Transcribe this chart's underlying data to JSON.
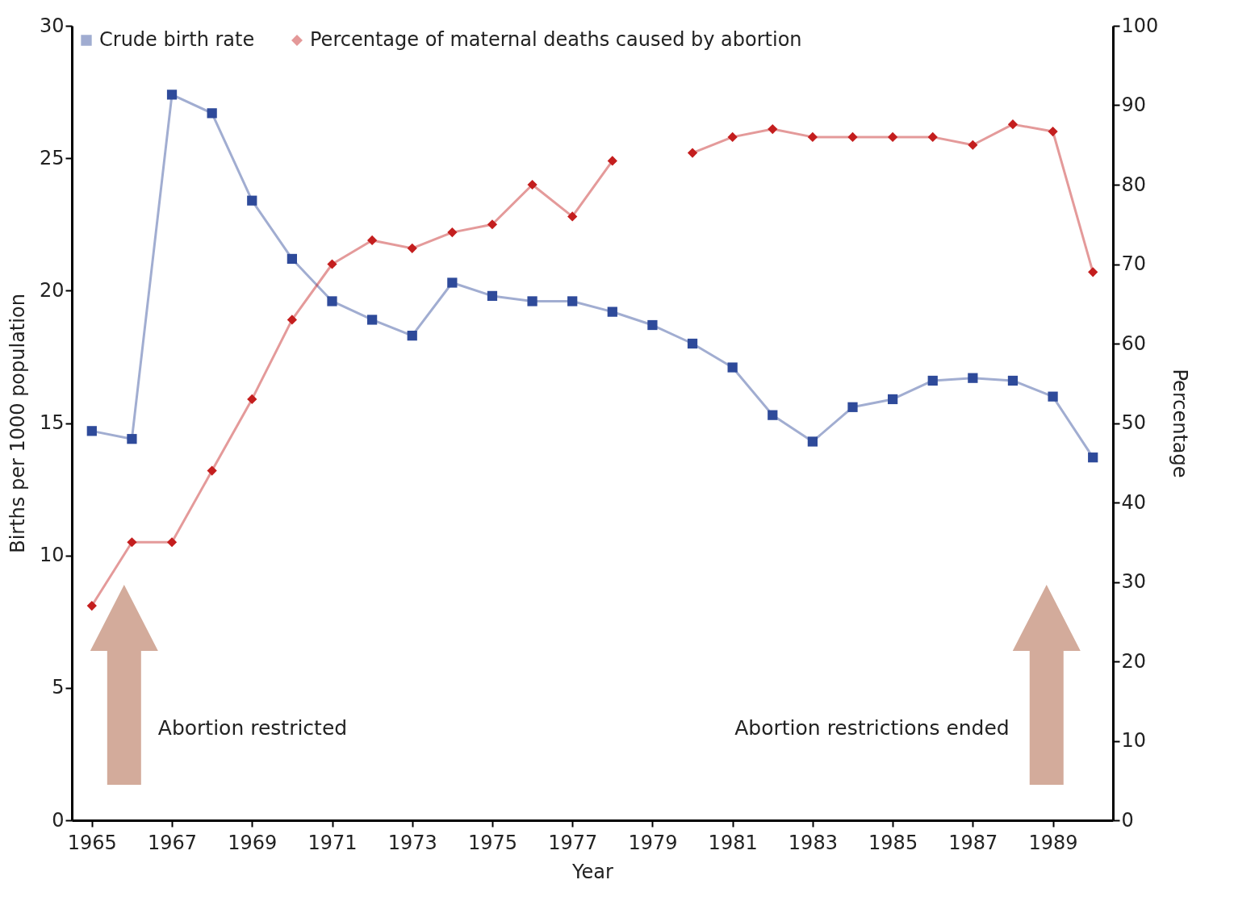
{
  "chart_data": {
    "type": "line",
    "xlabel": "Year",
    "ylabel": "Births per 1000 population",
    "y2label": "Percentage",
    "x": [
      1965,
      1966,
      1967,
      1968,
      1969,
      1970,
      1971,
      1972,
      1973,
      1974,
      1975,
      1976,
      1977,
      1978,
      1979,
      1980,
      1981,
      1982,
      1983,
      1984,
      1985,
      1986,
      1987,
      1988,
      1989,
      1990
    ],
    "series": [
      {
        "name": "Crude birth rate",
        "color": "#2e4a9a",
        "marker": "square",
        "values": [
          14.7,
          14.4,
          27.4,
          26.7,
          23.4,
          21.2,
          19.6,
          18.9,
          18.3,
          20.3,
          19.8,
          19.6,
          19.6,
          19.2,
          18.7,
          18.0,
          17.1,
          15.3,
          14.3,
          15.6,
          15.9,
          16.6,
          16.7,
          16.6,
          16.0,
          13.7
        ]
      },
      {
        "name": "Percentage of maternal deaths caused by abortion",
        "color": "#c41e1e",
        "marker": "diamond",
        "axis": "y2",
        "values": [
          27,
          35,
          35,
          44,
          53,
          63,
          70,
          73,
          72,
          74,
          75,
          80,
          76,
          83,
          null,
          84,
          86,
          87,
          86,
          86,
          86,
          86,
          85,
          87.6,
          86.7,
          69
        ]
      }
    ],
    "xlim": [
      1964.5,
      1990.5
    ],
    "xticks": [
      1965,
      1967,
      1969,
      1971,
      1973,
      1975,
      1977,
      1979,
      1981,
      1983,
      1985,
      1987,
      1989
    ],
    "ylim": [
      0,
      30
    ],
    "yticks": [
      0,
      5,
      10,
      15,
      20,
      25,
      30
    ],
    "y2lim": [
      0,
      100
    ],
    "y2ticks": [
      0,
      10,
      20,
      30,
      40,
      50,
      60,
      70,
      80,
      90,
      100
    ],
    "annotations": [
      "Abortion restricted",
      "Abortion restrictions ended"
    ],
    "legend": "top left",
    "grid": false,
    "line_style": "solid"
  }
}
